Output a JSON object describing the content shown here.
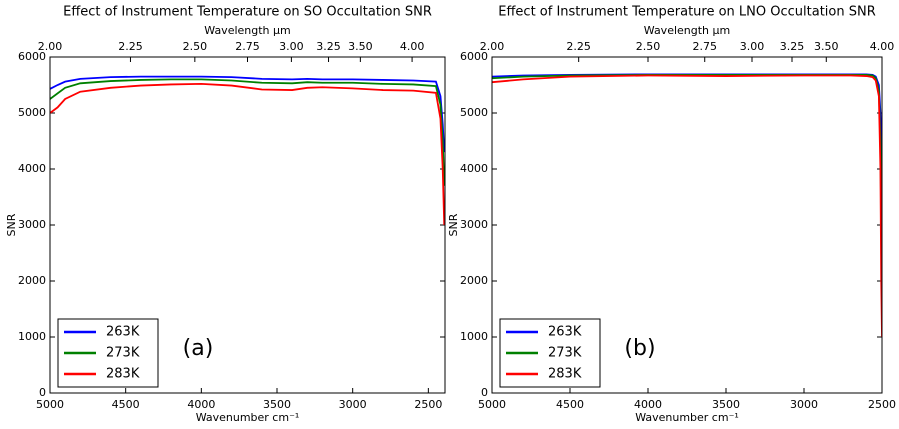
{
  "chart_data": [
    {
      "type": "line",
      "title": "Effect of Instrument Temperature on SO Occultation SNR",
      "x_label": "Wavenumber cm⁻¹",
      "x2_label": "Wavelength μm",
      "y_label": "SNR",
      "annotation": "(a)",
      "legend": "lower left",
      "x": [
        5000,
        4950,
        4900,
        4800,
        4600,
        4400,
        4200,
        4000,
        3800,
        3600,
        3400,
        3300,
        3200,
        3000,
        2800,
        2600,
        2450,
        2420,
        2405,
        2395
      ],
      "series": [
        {
          "name": "263K",
          "color": "#0000ff",
          "values": [
            5430,
            5500,
            5560,
            5610,
            5640,
            5650,
            5650,
            5650,
            5640,
            5610,
            5600,
            5610,
            5600,
            5600,
            5590,
            5580,
            5560,
            5300,
            4800,
            4300
          ]
        },
        {
          "name": "273K",
          "color": "#008000",
          "values": [
            5250,
            5350,
            5450,
            5530,
            5570,
            5590,
            5600,
            5600,
            5580,
            5540,
            5530,
            5550,
            5540,
            5540,
            5520,
            5510,
            5480,
            5150,
            4500,
            3700
          ]
        },
        {
          "name": "283K",
          "color": "#ff0000",
          "values": [
            5000,
            5100,
            5250,
            5380,
            5450,
            5490,
            5510,
            5520,
            5490,
            5420,
            5410,
            5450,
            5460,
            5440,
            5410,
            5400,
            5360,
            4900,
            4000,
            3000
          ]
        }
      ],
      "xlim": [
        5000,
        2390
      ],
      "xticks": [
        5000,
        4500,
        4000,
        3500,
        3000,
        2500
      ],
      "x2lim": [
        2.0,
        4.4
      ],
      "x2scale": "reciprocal",
      "x2ticks": [
        {
          "value": 2.0,
          "label": "2.00"
        },
        {
          "value": 2.25,
          "label": "2.25"
        },
        {
          "value": 2.5,
          "label": "2.50"
        },
        {
          "value": 2.75,
          "label": "2.75"
        },
        {
          "value": 3.0,
          "label": "3.00"
        },
        {
          "value": 3.25,
          "label": "3.25"
        },
        {
          "value": 3.5,
          "label": "3.50"
        },
        {
          "value": 4.0,
          "label": "4.00"
        }
      ],
      "ylim": [
        0,
        6000
      ],
      "yticks": [
        0,
        1000,
        2000,
        3000,
        4000,
        5000,
        6000
      ]
    },
    {
      "type": "line",
      "title": "Effect of Instrument Temperature on LNO Occultation SNR",
      "x_label": "Wavenumber cm⁻¹",
      "x2_label": "Wavelength μm",
      "y_label": "SNR",
      "annotation": "(b)",
      "legend": "lower left",
      "x": [
        5000,
        4800,
        4500,
        4000,
        3500,
        3000,
        2700,
        2600,
        2560,
        2540,
        2520,
        2510,
        2505,
        2500
      ],
      "series": [
        {
          "name": "263K",
          "color": "#0000ff",
          "values": [
            5650,
            5670,
            5680,
            5690,
            5690,
            5690,
            5690,
            5690,
            5680,
            5650,
            5500,
            5000,
            4500,
            3800
          ]
        },
        {
          "name": "273K",
          "color": "#008000",
          "values": [
            5620,
            5650,
            5670,
            5680,
            5680,
            5680,
            5680,
            5680,
            5670,
            5620,
            5400,
            4500,
            3000,
            2000
          ]
        },
        {
          "name": "283K",
          "color": "#ff0000",
          "values": [
            5550,
            5600,
            5650,
            5670,
            5660,
            5670,
            5670,
            5660,
            5640,
            5580,
            5300,
            4000,
            2000,
            1000
          ]
        }
      ],
      "xlim": [
        5000,
        2500
      ],
      "xticks": [
        5000,
        4500,
        4000,
        3500,
        3000,
        2500
      ],
      "x2lim": [
        2.0,
        4.0
      ],
      "x2scale": "reciprocal",
      "x2ticks": [
        {
          "value": 2.0,
          "label": "2.00"
        },
        {
          "value": 2.25,
          "label": "2.25"
        },
        {
          "value": 2.5,
          "label": "2.50"
        },
        {
          "value": 2.75,
          "label": "2.75"
        },
        {
          "value": 3.0,
          "label": "3.00"
        },
        {
          "value": 3.25,
          "label": "3.25"
        },
        {
          "value": 3.5,
          "label": "3.50"
        },
        {
          "value": 4.0,
          "label": "4.00"
        }
      ],
      "ylim": [
        0,
        6000
      ],
      "yticks": [
        0,
        1000,
        2000,
        3000,
        4000,
        5000,
        6000
      ]
    }
  ]
}
